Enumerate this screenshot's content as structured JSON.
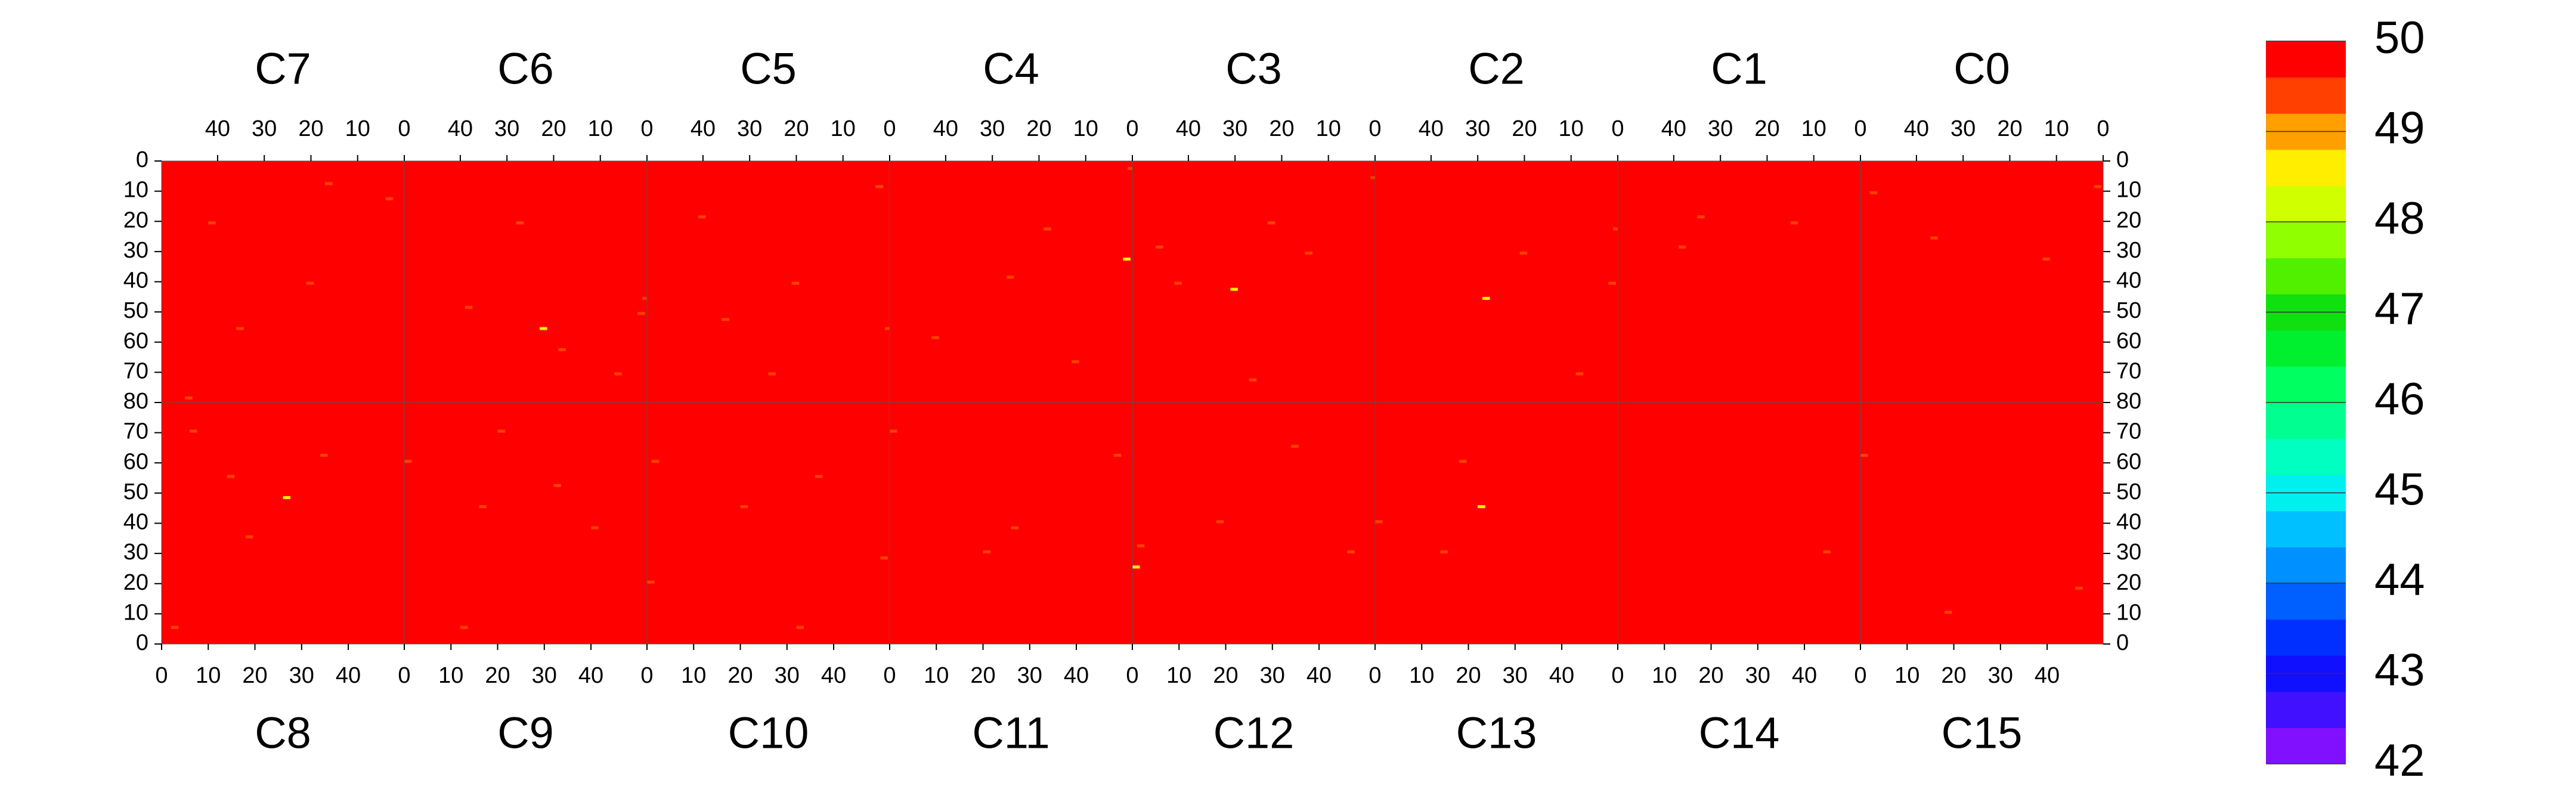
{
  "chart_data": {
    "type": "heatmap",
    "xlim": [
      0,
      52
    ],
    "ylim": [
      0,
      80
    ],
    "xticks": [
      0,
      10,
      20,
      30,
      40
    ],
    "yticks": [
      0,
      10,
      20,
      30,
      40,
      50,
      60,
      70,
      80
    ],
    "fill_value": 50,
    "cbar_lim": [
      42,
      50
    ],
    "cbar_ticks": [
      42,
      43,
      44,
      45,
      46,
      47,
      48,
      49,
      50
    ],
    "colormap": [
      "#8010ff",
      "#4010ff",
      "#1010ff",
      "#0030ff",
      "#0060ff",
      "#0090ff",
      "#00c0ff",
      "#00f0f0",
      "#00ffc0",
      "#00ff90",
      "#00ff60",
      "#00f030",
      "#10e010",
      "#50f000",
      "#90ff00",
      "#d0ff00",
      "#ffee00",
      "#ffa000",
      "#ff4000",
      "#ff0000"
    ],
    "top_row": [
      {
        "name": "C7",
        "cols": [
          3,
          12,
          20,
          28,
          35,
          41,
          8,
          46,
          24,
          16
        ],
        "rows": [
          12,
          25,
          40,
          33,
          55,
          20,
          66,
          78,
          50,
          7
        ],
        "values": [
          49.5,
          49.6,
          49.3,
          49.7,
          49.5,
          49.4,
          49.6,
          49.2,
          49.7,
          49.5
        ]
      },
      {
        "name": "C6",
        "cols": [
          0,
          1,
          10,
          18,
          27,
          33,
          44,
          6,
          38,
          22,
          14
        ],
        "rows": [
          45,
          50,
          30,
          62,
          20,
          35,
          10,
          70,
          48,
          55,
          15
        ],
        "values": [
          49.3,
          49.4,
          49.6,
          49.5,
          49.2,
          49.6,
          49.7,
          49.5,
          49.4,
          48.5,
          49.6
        ]
      },
      {
        "name": "C5",
        "cols": [
          2,
          0,
          12,
          20,
          30,
          40,
          48,
          25,
          15,
          35
        ],
        "rows": [
          8,
          55,
          28,
          40,
          62,
          18,
          35,
          70,
          45,
          52
        ],
        "values": [
          49.5,
          49.3,
          49.6,
          49.4,
          49.6,
          49.5,
          49.7,
          49.3,
          49.6,
          49.5
        ]
      },
      {
        "name": "C4",
        "cols": [
          0,
          1,
          8,
          18,
          26,
          34,
          42,
          50,
          12,
          30
        ],
        "rows": [
          2,
          32,
          45,
          22,
          38,
          15,
          58,
          40,
          66,
          8
        ],
        "values": [
          49.4,
          48.5,
          49.6,
          49.5,
          49.3,
          49.6,
          49.5,
          49.7,
          49.4,
          49.6
        ]
      },
      {
        "name": "C3",
        "cols": [
          0,
          5,
          14,
          22,
          30,
          38,
          46,
          10,
          26,
          42
        ],
        "rows": [
          5,
          12,
          30,
          20,
          42,
          55,
          28,
          66,
          72,
          40
        ],
        "values": [
          49.3,
          49.6,
          49.5,
          49.4,
          48.6,
          49.6,
          49.5,
          49.7,
          49.5,
          49.4
        ]
      },
      {
        "name": "C2",
        "cols": [
          0,
          1,
          12,
          20,
          28,
          34,
          8,
          24,
          40
        ],
        "rows": [
          22,
          40,
          15,
          30,
          45,
          60,
          70,
          55,
          10
        ],
        "values": [
          49.3,
          49.4,
          49.6,
          49.5,
          48.6,
          49.6,
          49.5,
          49.7,
          49.6
        ]
      },
      {
        "name": "C1",
        "cols": [
          6,
          14,
          22,
          30,
          38,
          46,
          18,
          26,
          34,
          50
        ],
        "rows": [
          5,
          20,
          12,
          35,
          28,
          45,
          60,
          72,
          18,
          74
        ],
        "values": [
          49.6,
          49.5,
          49.7,
          49.6,
          49.5,
          49.6,
          49.7,
          49.6,
          49.5,
          49.6
        ]
      },
      {
        "name": "C0",
        "cols": [
          1,
          4,
          12,
          20,
          28,
          36,
          44,
          49,
          16,
          32
        ],
        "rows": [
          8,
          20,
          32,
          14,
          45,
          25,
          35,
          10,
          72,
          55
        ],
        "values": [
          49.4,
          49.6,
          49.5,
          49.7,
          49.6,
          49.5,
          49.6,
          49.5,
          49.6,
          49.7
        ]
      }
    ],
    "bottom_row": [
      {
        "name": "C8",
        "cols": [
          2,
          10,
          18,
          26,
          34,
          42,
          6,
          30,
          14,
          48
        ],
        "rows": [
          5,
          22,
          35,
          48,
          62,
          14,
          70,
          28,
          55,
          40
        ],
        "values": [
          49.5,
          49.6,
          49.4,
          48.6,
          49.5,
          49.6,
          49.3,
          49.7,
          49.5,
          49.6
        ]
      },
      {
        "name": "C9",
        "cols": [
          0,
          8,
          16,
          24,
          32,
          40,
          48,
          20,
          36,
          12
        ],
        "rows": [
          60,
          30,
          45,
          18,
          52,
          38,
          25,
          70,
          10,
          5
        ],
        "values": [
          49.3,
          49.6,
          49.5,
          49.7,
          49.5,
          49.4,
          49.6,
          49.5,
          49.6,
          49.5
        ]
      },
      {
        "name": "C10",
        "cols": [
          0,
          1,
          10,
          20,
          28,
          36,
          44,
          50,
          15,
          32
        ],
        "rows": [
          20,
          60,
          32,
          45,
          15,
          55,
          38,
          28,
          70,
          5
        ],
        "values": [
          49.3,
          49.4,
          49.6,
          49.5,
          49.6,
          49.5,
          49.7,
          49.4,
          49.6,
          49.5
        ]
      },
      {
        "name": "C11",
        "cols": [
          0,
          10,
          20,
          30,
          40,
          48,
          5,
          26
        ],
        "rows": [
          70,
          45,
          30,
          55,
          20,
          62,
          10,
          38
        ],
        "values": [
          49.4,
          49.6,
          49.5,
          49.7,
          49.6,
          49.5,
          49.6,
          49.5
        ]
      },
      {
        "name": "C12",
        "cols": [
          0,
          1,
          8,
          18,
          28,
          38,
          46,
          12,
          34
        ],
        "rows": [
          25,
          32,
          55,
          40,
          20,
          48,
          30,
          12,
          65
        ],
        "values": [
          48.6,
          49.3,
          49.6,
          49.5,
          49.7,
          49.6,
          49.5,
          49.6,
          49.4
        ]
      },
      {
        "name": "C13",
        "cols": [
          0,
          5,
          14,
          22,
          24,
          30,
          18
        ],
        "rows": [
          40,
          22,
          30,
          45,
          50,
          12,
          60
        ],
        "values": [
          49.4,
          49.6,
          49.5,
          48.6,
          49.6,
          49.7,
          49.5
        ]
      },
      {
        "name": "C14",
        "cols": [
          10,
          25,
          36,
          44,
          50
        ],
        "rows": [
          20,
          40,
          15,
          30,
          55
        ],
        "values": [
          49.6,
          49.7,
          49.6,
          49.5,
          49.6
        ]
      },
      {
        "name": "C15",
        "cols": [
          0,
          8,
          18,
          28,
          38,
          46,
          24
        ],
        "rows": [
          62,
          30,
          10,
          45,
          25,
          18,
          38
        ],
        "values": [
          49.4,
          49.6,
          49.5,
          49.7,
          49.6,
          49.5,
          49.6
        ]
      }
    ]
  }
}
